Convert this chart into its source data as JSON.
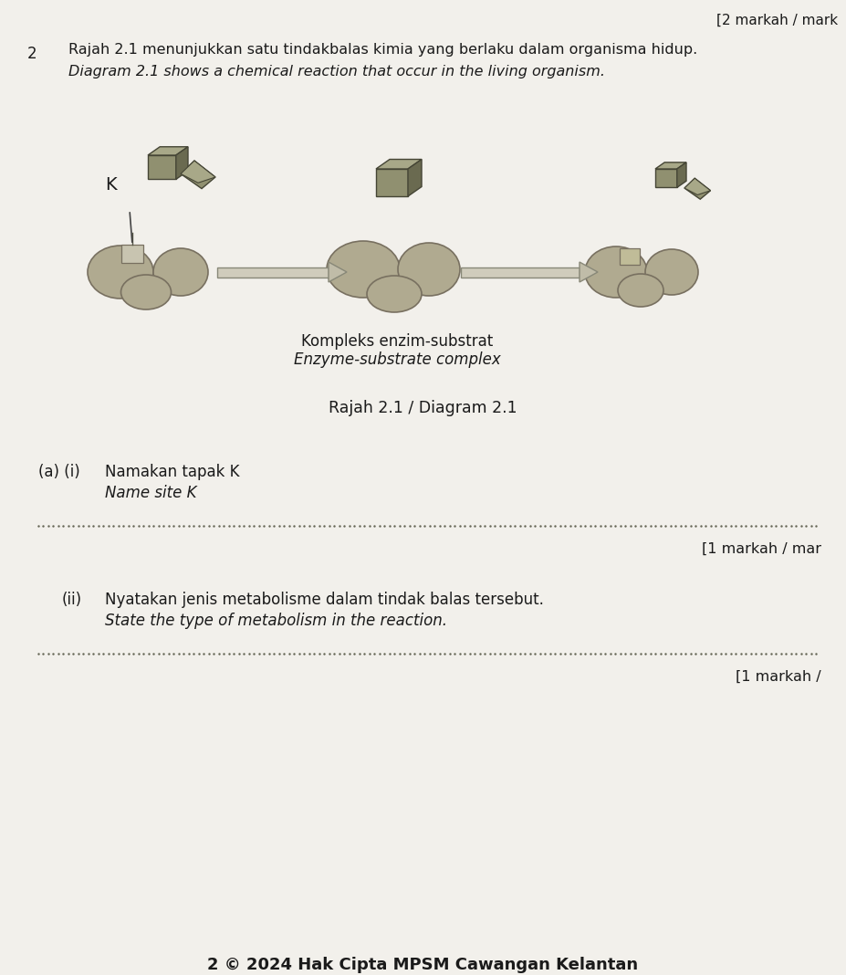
{
  "background_color": "#e8e6e0",
  "page_background": "#dcdad4",
  "page_width": 9.27,
  "page_height": 10.68,
  "top_right_text": "[2 markah / mark",
  "question_number": "2",
  "question_malay": "Rajah 2.1 menunjukkan satu tindakbalas kimia yang berlaku dalam organisma hidup.",
  "question_english": "Diagram 2.1 shows a chemical reaction that occur in the living organism.",
  "diagram_label_malay": "Kompleks enzim-substrat",
  "diagram_label_english": "Enzyme-substrate complex",
  "diagram_caption": "Rajah 2.1 / Diagram 2.1",
  "qa_malay": "Namakan tapak K",
  "qa_english": "Name site K",
  "mark_a": "[1 markah / mar",
  "qb_malay": "Nyatakan jenis metabolisme dalam tindak balas tersebut.",
  "qb_english": "State the type of metabolism in the reaction.",
  "mark_b": "[1 markah /",
  "footer": "2 © 2024 Hak Cipta MPSM Cawangan Kelantan",
  "k_label": "K",
  "enzyme_color": "#b0aa90",
  "enzyme_edge": "#787060",
  "substrate_face": "#909070",
  "substrate_top": "#a8a888",
  "substrate_right": "#6a6a50",
  "arrow_fill": "#c8c4b8",
  "arrow_edge": "#888878"
}
